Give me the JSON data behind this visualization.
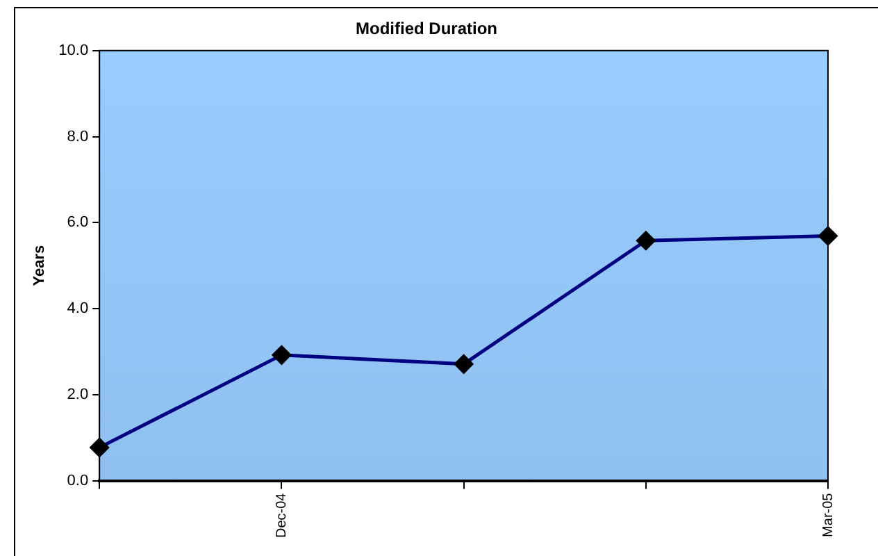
{
  "chart_data": {
    "type": "line",
    "title": "Modified Duration",
    "ylabel": "Years",
    "categories": [
      null,
      "Dec-04",
      null,
      null,
      "Mar-05"
    ],
    "series": [
      {
        "color": "#000080",
        "values": [
          0.77,
          2.92,
          2.71,
          5.58,
          5.69
        ]
      }
    ],
    "ylim": [
      0,
      10
    ],
    "yticks": [
      {
        "value": 0,
        "label": "0.0"
      },
      {
        "value": 2,
        "label": "2.0"
      },
      {
        "value": 4,
        "label": "4.0"
      },
      {
        "value": 6,
        "label": "6.0"
      },
      {
        "value": 8,
        "label": "8.0"
      },
      {
        "value": 10,
        "label": "10.0"
      }
    ],
    "grid": false,
    "legend": false,
    "marker": "diamond",
    "line_style": "solid"
  }
}
